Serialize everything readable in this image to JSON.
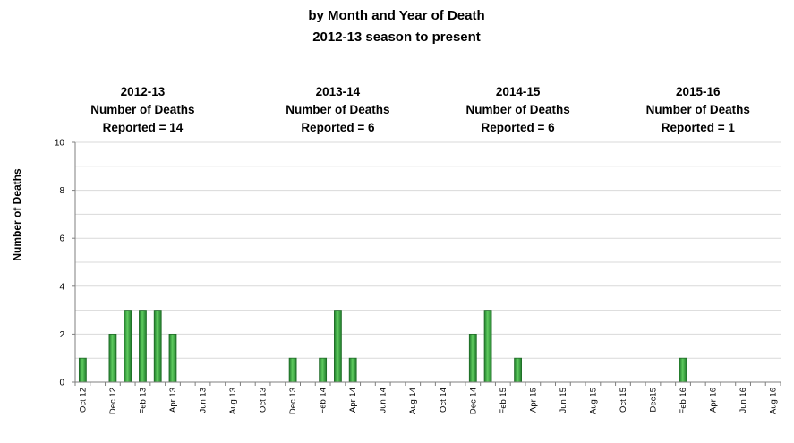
{
  "chart_data": {
    "type": "bar",
    "title": [
      "by Month and Year of Death",
      "2012-13 season to present"
    ],
    "ylabel": "Number of Deaths",
    "xlabel": "",
    "ylim": [
      0,
      10
    ],
    "yticks": [
      0,
      2,
      4,
      6,
      8,
      10
    ],
    "grid": true,
    "colors": {
      "bar": "#2e9a3a",
      "bar_edge": "#1f6b27",
      "bar_highlight": "#6fcf6f",
      "grid": "#d9d9d9",
      "axis": "#7f7f7f"
    },
    "x_tick_labels": [
      "Oct 12",
      "Dec 12",
      "Feb 13",
      "Apr 13",
      "Jun 13",
      "Aug 13",
      "Oct 13",
      "Dec 13",
      "Feb 14",
      "Apr 14",
      "Jun 14",
      "Aug 14",
      "Oct 14",
      "Dec 14",
      "Feb 15",
      "Apr 15",
      "Jun 15",
      "Aug 15",
      "Oct 15",
      "Dec15",
      "Feb 16",
      "Apr 16",
      "Jun 16",
      "Aug 16"
    ],
    "months": [
      "Oct 12",
      "Nov 12",
      "Dec 12",
      "Jan 13",
      "Feb 13",
      "Mar 13",
      "Apr 13",
      "May 13",
      "Jun 13",
      "Jul 13",
      "Aug 13",
      "Sep 13",
      "Oct 13",
      "Nov 13",
      "Dec 13",
      "Jan 14",
      "Feb 14",
      "Mar 14",
      "Apr 14",
      "May 14",
      "Jun 14",
      "Jul 14",
      "Aug 14",
      "Sep 14",
      "Oct 14",
      "Nov 14",
      "Dec 14",
      "Jan 15",
      "Feb 15",
      "Mar 15",
      "Apr 15",
      "May 15",
      "Jun 15",
      "Jul 15",
      "Aug 15",
      "Sep 15",
      "Oct 15",
      "Nov 15",
      "Dec 15",
      "Jan 16",
      "Feb 16",
      "Mar 16",
      "Apr 16",
      "May 16",
      "Jun 16",
      "Jul 16",
      "Aug 16"
    ],
    "values": [
      1,
      0,
      2,
      3,
      3,
      3,
      2,
      0,
      0,
      0,
      0,
      0,
      0,
      0,
      1,
      0,
      1,
      3,
      1,
      0,
      0,
      0,
      0,
      0,
      0,
      0,
      2,
      3,
      0,
      1,
      0,
      0,
      0,
      0,
      0,
      0,
      0,
      0,
      0,
      0,
      1,
      0,
      0,
      0,
      0,
      0,
      0
    ],
    "season_annotations": [
      {
        "lines": [
          "2012-13",
          "Number of Deaths",
          "Reported = 14"
        ],
        "anchor_month": "Feb 13"
      },
      {
        "lines": [
          "2013-14",
          "Number of Deaths",
          "Reported = 6"
        ],
        "anchor_month": "Mar 14"
      },
      {
        "lines": [
          "2014-15",
          "Number of Deaths",
          "Reported = 6"
        ],
        "anchor_month": "Mar 15"
      },
      {
        "lines": [
          "2015-16",
          "Number of Deaths",
          "Reported = 1"
        ],
        "anchor_month": "Mar 16"
      }
    ]
  }
}
